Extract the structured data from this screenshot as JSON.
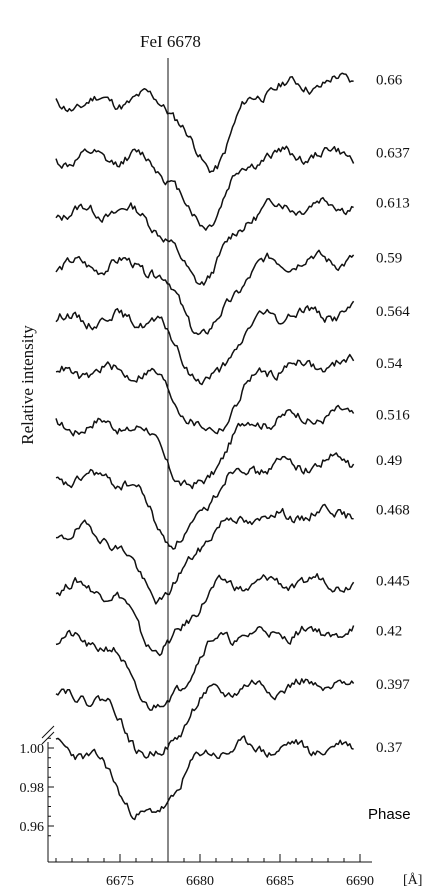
{
  "chart_data": {
    "type": "line",
    "title": "FeI 6678",
    "xlabel": "[Å]",
    "ylabel": "Relative intensity",
    "x_ticks": [
      6675,
      6680,
      6685,
      6690
    ],
    "x_tick_labels": [
      "6675",
      "6680",
      "6685",
      "6690"
    ],
    "xlim": [
      6670.5,
      6690.5
    ],
    "y_ticks": [
      1.0,
      0.98,
      0.96
    ],
    "y_tick_labels": [
      "1.00",
      "0.98",
      "0.96"
    ],
    "reference_line_x": 6678,
    "legend_header": "Phase",
    "offset_note": "profiles shifted vertically, phase increases upward",
    "series": [
      {
        "name": "0.66",
        "dip_center": 6680.6,
        "dip_depth": 0.038,
        "dip_width": 1.3,
        "start_level": 1.0,
        "end_level": 1.013,
        "noise_seed": 11
      },
      {
        "name": "0.637",
        "dip_center": 6680.2,
        "dip_depth": 0.034,
        "dip_width": 1.4,
        "start_level": 1.0,
        "end_level": 1.003,
        "noise_seed": 12
      },
      {
        "name": "0.613",
        "dip_center": 6680.0,
        "dip_depth": 0.036,
        "dip_width": 1.6,
        "start_level": 1.0,
        "end_level": 1.005,
        "noise_seed": 13
      },
      {
        "name": "0.59",
        "dip_center": 6680.3,
        "dip_depth": 0.036,
        "dip_width": 1.5,
        "start_level": 1.0,
        "end_level": 1.004,
        "noise_seed": 14
      },
      {
        "name": "0.564",
        "dip_center": 6680.4,
        "dip_depth": 0.034,
        "dip_width": 1.5,
        "start_level": 1.0,
        "end_level": 1.004,
        "noise_seed": 15
      },
      {
        "name": "0.54",
        "dip_center": 6680.5,
        "dip_depth": 0.033,
        "dip_width": 1.6,
        "start_level": 1.0,
        "end_level": 1.005,
        "noise_seed": 16
      },
      {
        "name": "0.516",
        "dip_center": 6679.6,
        "dip_depth": 0.035,
        "dip_width": 1.5,
        "start_level": 1.0,
        "end_level": 1.006,
        "noise_seed": 17
      },
      {
        "name": "0.49",
        "dip_center": 6678.6,
        "dip_depth": 0.036,
        "dip_width": 1.5,
        "start_level": 1.0,
        "end_level": 1.01,
        "noise_seed": 18
      },
      {
        "name": "0.468",
        "dip_center": 6677.6,
        "dip_depth": 0.036,
        "dip_width": 1.6,
        "start_level": 1.0,
        "end_level": 1.012,
        "noise_seed": 19
      },
      {
        "name": "0.445",
        "dip_center": 6677.6,
        "dip_depth": 0.033,
        "dip_width": 1.5,
        "start_level": 1.0,
        "end_level": 1.003,
        "noise_seed": 20
      },
      {
        "name": "0.42",
        "dip_center": 6677.4,
        "dip_depth": 0.036,
        "dip_width": 1.6,
        "start_level": 1.0,
        "end_level": 1.005,
        "noise_seed": 21
      },
      {
        "name": "0.397",
        "dip_center": 6677.1,
        "dip_depth": 0.034,
        "dip_width": 1.6,
        "start_level": 1.0,
        "end_level": 1.005,
        "noise_seed": 22
      },
      {
        "name": "0.37",
        "dip_center": 6676.7,
        "dip_depth": 0.036,
        "dip_width": 1.7,
        "start_level": 1.0,
        "end_level": 1.0,
        "noise_seed": 23
      }
    ]
  }
}
